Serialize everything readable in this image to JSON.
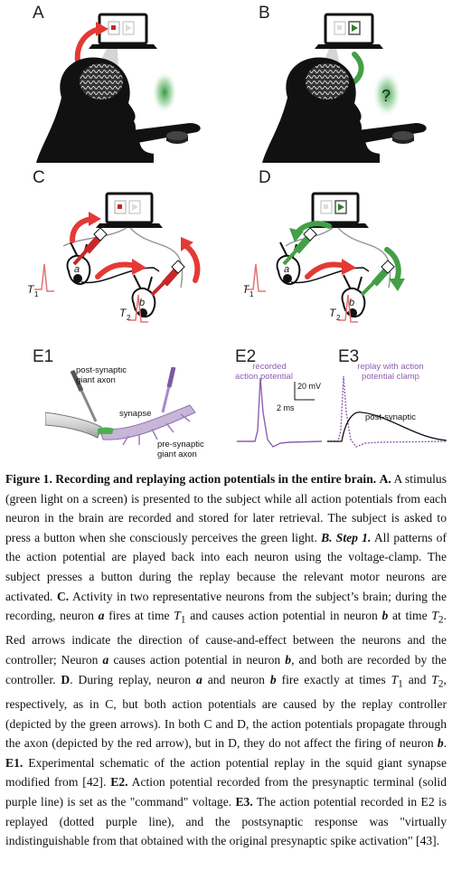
{
  "panels": {
    "a": {
      "label": "A"
    },
    "b": {
      "label": "B",
      "question": "?"
    },
    "c": {
      "label": "C",
      "neuron_a": "a",
      "neuron_b": "b",
      "t1": "T",
      "t1_sub": "1",
      "t2": "T",
      "t2_sub": "2"
    },
    "d": {
      "label": "D",
      "neuron_a": "a",
      "neuron_b": "b",
      "t1": "T",
      "t1_sub": "1",
      "t2": "T",
      "t2_sub": "2"
    },
    "e1": {
      "label": "E1",
      "post_label_1": "post-synaptic",
      "post_label_2": "giant axon",
      "synapse_label": "synapse",
      "pre_label_1": "pre-synaptic",
      "pre_label_2": "giant axon"
    },
    "e2": {
      "label": "E2",
      "trace_label_1": "recorded",
      "trace_label_2": "action potential",
      "scale_mv": "20 mV",
      "scale_ms": "2 ms"
    },
    "e3": {
      "label": "E3",
      "trace_label_1": "replay with action",
      "trace_label_2": "potential clamp",
      "post_label": "post-synaptic"
    }
  },
  "caption": {
    "title": "Figure 1. Recording and replaying action potentials in the entire brain.",
    "a_label": "A.",
    "a_text": "A stimulus (green light on a screen) is presented to the subject while all action potentials from each neuron in the brain are recorded and stored for later retrieval. The subject is asked to press a button when she consciously perceives the green light.",
    "b_label": "B. Step 1.",
    "b_text": "All patterns of the action potential are played back into each neuron using the voltage-clamp. The subject presses a button during the replay because the relevant motor neurons are activated.",
    "c_label": "C.",
    "c_text_1": "Activity in two representative neurons from the subject’s brain; during the recording, neuron",
    "c_text_2": "fires at time",
    "c_text_3": "and causes action potential in neuron",
    "c_text_4": "at time",
    "c_text_5": "Red arrows indicate the direction of cause-and-effect between the neurons and the controller; Neuron",
    "c_text_6": "causes action potential in neuron",
    "c_text_7": ", and both are recorded by the controller.",
    "d_label": "D",
    "d_text_1": ". During replay, neuron",
    "d_text_2": "and neuron",
    "d_text_3": "fire exactly at times",
    "d_text_4": "and",
    "d_text_5": ", respectively, as in C, but both action potentials are caused by the replay controller (depicted by the green arrows). In both C and D, the action potentials propagate through the axon (depicted by the red arrow), but in D, they do not affect the firing of neuron",
    "d_text_6": ".",
    "e1_label": "E1.",
    "e1_text": "Experimental schematic of the action potential replay in the squid giant synapse modified from [42].",
    "e2_label": "E2.",
    "e2_text": "Action potential recorded from the presynaptic terminal (solid purple line) is set as the \"command\" voltage.",
    "e3_label": "E3.",
    "e3_text": "The action potential recorded in E2 is replayed (dotted purple line), and the postsynaptic response was \"virtually indistinguishable from that obtained with the original presynaptic spike activation\" [43].",
    "na": "a",
    "nb": "b",
    "t": "T",
    "s1": "1",
    "s2": "2"
  }
}
